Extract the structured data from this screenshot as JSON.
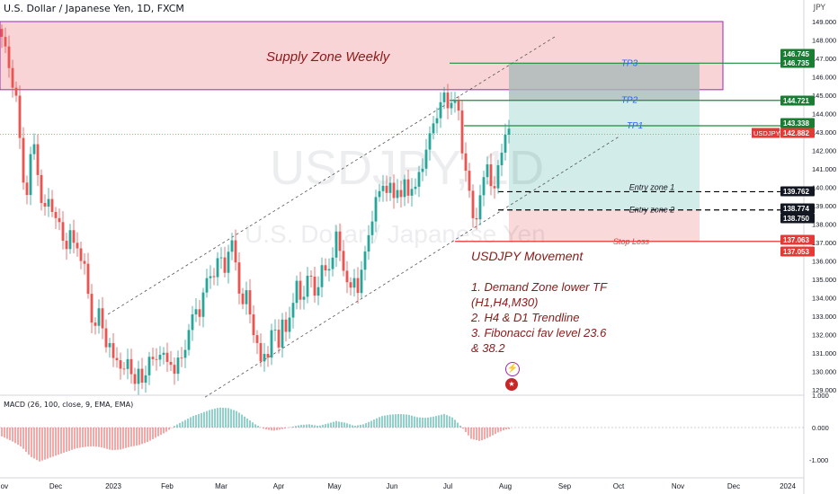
{
  "header": {
    "title": "U.S. Dollar / Japanese Yen, 1D, FXCM",
    "currency": "JPY"
  },
  "watermark": {
    "symbol": "USDJPY, 1D",
    "name": "U.S. Dollar / Japanese Yen"
  },
  "annotations": {
    "supply_zone": "Supply Zone Weekly",
    "tp3": "TP3",
    "tp2": "TP2",
    "tp1": "TP1",
    "entry1": "Entry zone 1",
    "entry2": "Entry zone 2",
    "stop_loss": "Stop Loss",
    "movement_title": "USDJPY Movement",
    "notes": [
      "1. Demand Zone lower TF",
      "(H1,H4,M30)",
      "2. H4 & D1 Trendline",
      "3. Fibonacci fav level 23.6",
      "& 38.2"
    ]
  },
  "price_badges": [
    {
      "label": "146.745",
      "kind": "green"
    },
    {
      "label": "146.735",
      "kind": "green"
    },
    {
      "label": "144.721",
      "kind": "green"
    },
    {
      "label": "143.338",
      "kind": "green"
    },
    {
      "label": "142.882",
      "kind": "red",
      "tag": "USDJPY"
    },
    {
      "label": "139.762",
      "kind": "dark"
    },
    {
      "label": "138.774",
      "kind": "dark"
    },
    {
      "label": "138.750",
      "kind": "dark"
    },
    {
      "label": "137.063",
      "kind": "red"
    },
    {
      "label": "137.053",
      "kind": "red"
    }
  ],
  "macd": {
    "title": "MACD (26, 100, close, 9, EMA, EMA)"
  },
  "colors": {
    "up": "#26a69a",
    "down": "#ef5350",
    "supply": "#f8c9cc",
    "tp": "#1e8a3a",
    "sl": "#e53935",
    "note": "#8b1a1a",
    "label_blue": "#2962ff"
  },
  "chart_data": {
    "type": "candlestick",
    "title": "U.S. Dollar / Japanese Yen, 1D, FXCM",
    "ylim": [
      128.6,
      149.5
    ],
    "price_ticks": [
      "149.000",
      "148.000",
      "147.000",
      "146.000",
      "145.000",
      "144.000",
      "143.000",
      "142.000",
      "141.000",
      "140.000",
      "139.000",
      "138.000",
      "137.000",
      "136.000",
      "135.000",
      "134.000",
      "133.000",
      "132.000",
      "131.000",
      "130.000",
      "129.000"
    ],
    "x_ticks": [
      "Nov",
      "Dec",
      "2023",
      "Feb",
      "Mar",
      "Apr",
      "May",
      "Jun",
      "Jul",
      "Aug",
      "Sep",
      "Oct",
      "Nov",
      "Dec",
      "2024"
    ],
    "macd_ticks": [
      "1.000",
      "0.000",
      "-1.000"
    ],
    "levels": {
      "supply_zone": [
        145.3,
        149.0
      ],
      "tp3": 146.74,
      "tp2": 144.72,
      "tp1": 143.34,
      "entry1": 139.76,
      "entry2": 138.77,
      "stop_loss": 137.06,
      "last": 142.88
    },
    "close_path": [
      [
        0,
        148.6
      ],
      [
        6,
        147.3
      ],
      [
        12,
        146.2
      ],
      [
        18,
        144.8
      ],
      [
        22,
        142.4
      ],
      [
        26,
        140.5
      ],
      [
        30,
        139.8
      ],
      [
        34,
        141.5
      ],
      [
        38,
        142.2
      ],
      [
        42,
        141.0
      ],
      [
        46,
        139.2
      ],
      [
        50,
        138.6
      ],
      [
        54,
        139.4
      ],
      [
        58,
        139.0
      ],
      [
        62,
        138.2
      ],
      [
        66,
        137.8
      ],
      [
        70,
        137.3
      ],
      [
        74,
        136.9
      ],
      [
        78,
        137.4
      ],
      [
        82,
        136.8
      ],
      [
        86,
        137.0
      ],
      [
        90,
        136.1
      ],
      [
        94,
        135.5
      ],
      [
        98,
        134.2
      ],
      [
        102,
        133.0
      ],
      [
        106,
        132.4
      ],
      [
        110,
        133.1
      ],
      [
        114,
        132.5
      ],
      [
        118,
        131.6
      ],
      [
        122,
        131.3
      ],
      [
        126,
        130.5
      ],
      [
        130,
        130.9
      ],
      [
        134,
        130.3
      ],
      [
        138,
        129.8
      ],
      [
        142,
        130.6
      ],
      [
        146,
        130.2
      ],
      [
        150,
        129.3
      ],
      [
        154,
        129.8
      ],
      [
        158,
        129.5
      ],
      [
        162,
        130.1
      ],
      [
        166,
        130.6
      ],
      [
        170,
        130.4
      ],
      [
        174,
        130.9
      ],
      [
        178,
        131.1
      ],
      [
        182,
        130.7
      ],
      [
        186,
        130.4
      ],
      [
        190,
        130.7
      ],
      [
        194,
        129.9
      ],
      [
        198,
        130.4
      ],
      [
        202,
        130.8
      ],
      [
        206,
        131.5
      ],
      [
        210,
        132.1
      ],
      [
        214,
        132.8
      ],
      [
        218,
        133.6
      ],
      [
        222,
        133.2
      ],
      [
        226,
        134.0
      ],
      [
        230,
        134.9
      ],
      [
        234,
        135.5
      ],
      [
        238,
        135.2
      ],
      [
        242,
        135.8
      ],
      [
        246,
        136.2
      ],
      [
        250,
        135.7
      ],
      [
        254,
        136.4
      ],
      [
        258,
        136.8
      ],
      [
        262,
        136.1
      ],
      [
        266,
        134.5
      ],
      [
        270,
        133.4
      ],
      [
        274,
        134.2
      ],
      [
        278,
        133.4
      ],
      [
        282,
        132.1
      ],
      [
        286,
        131.2
      ],
      [
        290,
        130.5
      ],
      [
        294,
        131.3
      ],
      [
        298,
        130.7
      ],
      [
        302,
        131.9
      ],
      [
        306,
        132.4
      ],
      [
        310,
        131.6
      ],
      [
        314,
        132.6
      ],
      [
        318,
        131.9
      ],
      [
        322,
        133.2
      ],
      [
        326,
        133.9
      ],
      [
        330,
        134.6
      ],
      [
        334,
        133.8
      ],
      [
        338,
        134.4
      ],
      [
        342,
        135.2
      ],
      [
        346,
        134.8
      ],
      [
        350,
        134.2
      ],
      [
        354,
        134.9
      ],
      [
        358,
        135.6
      ],
      [
        362,
        135.2
      ],
      [
        366,
        135.8
      ],
      [
        370,
        136.4
      ],
      [
        374,
        137.3
      ],
      [
        378,
        136.4
      ],
      [
        382,
        135.8
      ],
      [
        386,
        134.9
      ],
      [
        390,
        134.2
      ],
      [
        394,
        135.1
      ],
      [
        398,
        134.6
      ],
      [
        402,
        135.4
      ],
      [
        406,
        136.2
      ],
      [
        410,
        137.6
      ],
      [
        414,
        138.4
      ],
      [
        418,
        139.2
      ],
      [
        422,
        139.6
      ],
      [
        426,
        140.4
      ],
      [
        430,
        139.8
      ],
      [
        434,
        139.9
      ],
      [
        438,
        139.4
      ],
      [
        442,
        140.2
      ],
      [
        446,
        139.4
      ],
      [
        450,
        140.1
      ],
      [
        454,
        139.7
      ],
      [
        458,
        140.2
      ],
      [
        462,
        139.8
      ],
      [
        466,
        140.6
      ],
      [
        470,
        141.3
      ],
      [
        474,
        142.2
      ],
      [
        478,
        142.6
      ],
      [
        482,
        143.4
      ],
      [
        486,
        144.1
      ],
      [
        490,
        144.6
      ],
      [
        494,
        144.8
      ],
      [
        498,
        144.4
      ],
      [
        502,
        144.9
      ],
      [
        506,
        144.5
      ],
      [
        510,
        143.9
      ],
      [
        514,
        142.1
      ],
      [
        518,
        141.1
      ],
      [
        522,
        139.5
      ],
      [
        526,
        138.2
      ],
      [
        530,
        138.6
      ],
      [
        534,
        139.6
      ],
      [
        538,
        140.2
      ],
      [
        542,
        141.3
      ],
      [
        546,
        140.4
      ],
      [
        550,
        139.8
      ],
      [
        554,
        140.9
      ],
      [
        558,
        142.1
      ],
      [
        562,
        143.1
      ],
      [
        566,
        142.9
      ]
    ],
    "macd_path": [
      [
        0,
        -0.25
      ],
      [
        12,
        -0.4
      ],
      [
        24,
        -0.6
      ],
      [
        34,
        -0.9
      ],
      [
        44,
        -1.05
      ],
      [
        54,
        -0.95
      ],
      [
        64,
        -0.85
      ],
      [
        74,
        -0.75
      ],
      [
        84,
        -0.65
      ],
      [
        94,
        -0.6
      ],
      [
        104,
        -0.58
      ],
      [
        114,
        -0.62
      ],
      [
        124,
        -0.7
      ],
      [
        134,
        -0.68
      ],
      [
        144,
        -0.6
      ],
      [
        154,
        -0.55
      ],
      [
        164,
        -0.45
      ],
      [
        174,
        -0.3
      ],
      [
        184,
        -0.15
      ],
      [
        194,
        0.05
      ],
      [
        204,
        0.2
      ],
      [
        214,
        0.35
      ],
      [
        224,
        0.45
      ],
      [
        234,
        0.55
      ],
      [
        244,
        0.62
      ],
      [
        254,
        0.6
      ],
      [
        264,
        0.5
      ],
      [
        274,
        0.3
      ],
      [
        284,
        0.1
      ],
      [
        294,
        -0.05
      ],
      [
        304,
        -0.1
      ],
      [
        314,
        -0.05
      ],
      [
        324,
        0.02
      ],
      [
        334,
        0.08
      ],
      [
        344,
        0.1
      ],
      [
        354,
        0.05
      ],
      [
        364,
        0.12
      ],
      [
        374,
        0.2
      ],
      [
        384,
        0.15
      ],
      [
        394,
        0.05
      ],
      [
        404,
        0.1
      ],
      [
        414,
        0.22
      ],
      [
        424,
        0.35
      ],
      [
        434,
        0.4
      ],
      [
        444,
        0.42
      ],
      [
        454,
        0.4
      ],
      [
        464,
        0.32
      ],
      [
        474,
        0.3
      ],
      [
        484,
        0.35
      ],
      [
        494,
        0.42
      ],
      [
        504,
        0.3
      ],
      [
        514,
        0.0
      ],
      [
        524,
        -0.35
      ],
      [
        534,
        -0.42
      ],
      [
        544,
        -0.3
      ],
      [
        554,
        -0.15
      ],
      [
        564,
        -0.05
      ]
    ]
  }
}
